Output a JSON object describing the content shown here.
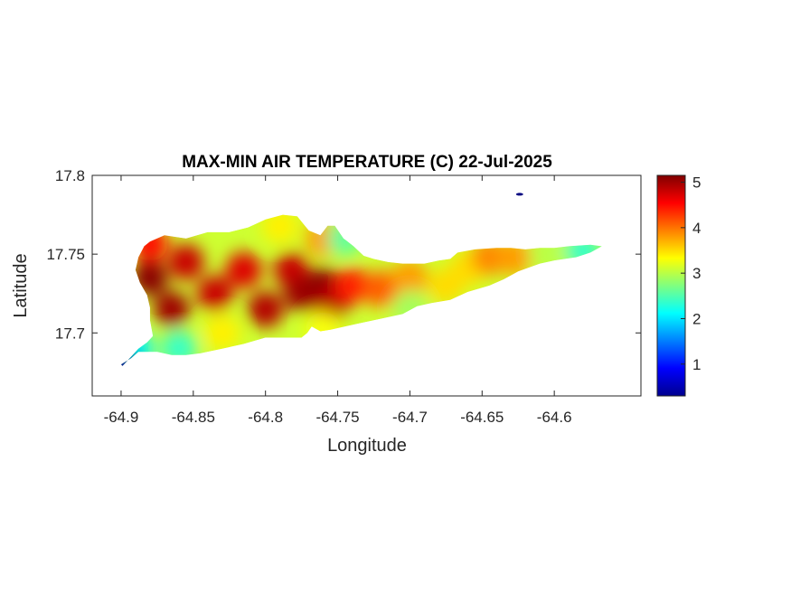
{
  "chart_data": {
    "type": "heatmap",
    "title": "MAX-MIN AIR TEMPERATURE (C) 22-Jul-2025",
    "xlabel": "Longitude",
    "ylabel": "Latitude",
    "xlim": [
      -64.92,
      -64.54
    ],
    "ylim": [
      17.66,
      17.8
    ],
    "x_ticks": [
      -64.9,
      -64.85,
      -64.8,
      -64.75,
      -64.7,
      -64.65,
      -64.6
    ],
    "x_tick_labels": [
      "-64.9",
      "-64.85",
      "-64.8",
      "-64.75",
      "-64.7",
      "-64.65",
      "-64.6"
    ],
    "y_ticks": [
      17.7,
      17.75,
      17.8
    ],
    "y_tick_labels": [
      "17.7",
      "17.75",
      "17.8"
    ],
    "colorbar": {
      "colormap": "jet",
      "range": [
        0.3,
        5.15
      ],
      "ticks": [
        1,
        2,
        3,
        4,
        5
      ],
      "tick_labels": [
        "1",
        "2",
        "3",
        "4",
        "5"
      ]
    },
    "island_outline_lonlat": [
      [
        -64.88,
        17.758
      ],
      [
        -64.87,
        17.762
      ],
      [
        -64.855,
        17.76
      ],
      [
        -64.84,
        17.764
      ],
      [
        -64.825,
        17.764
      ],
      [
        -64.812,
        17.767
      ],
      [
        -64.8,
        17.772
      ],
      [
        -64.788,
        17.775
      ],
      [
        -64.778,
        17.774
      ],
      [
        -64.77,
        17.765
      ],
      [
        -64.762,
        17.762
      ],
      [
        -64.757,
        17.768
      ],
      [
        -64.752,
        17.768
      ],
      [
        -64.746,
        17.76
      ],
      [
        -64.739,
        17.755
      ],
      [
        -64.732,
        17.749
      ],
      [
        -64.725,
        17.747
      ],
      [
        -64.715,
        17.745
      ],
      [
        -64.705,
        17.744
      ],
      [
        -64.69,
        17.744
      ],
      [
        -64.68,
        17.746
      ],
      [
        -64.672,
        17.747
      ],
      [
        -64.667,
        17.751
      ],
      [
        -64.655,
        17.753
      ],
      [
        -64.64,
        17.754
      ],
      [
        -64.63,
        17.754
      ],
      [
        -64.62,
        17.753
      ],
      [
        -64.61,
        17.754
      ],
      [
        -64.6,
        17.754
      ],
      [
        -64.59,
        17.755
      ],
      [
        -64.575,
        17.756
      ],
      [
        -64.567,
        17.755
      ],
      [
        -64.575,
        17.751
      ],
      [
        -64.585,
        17.748
      ],
      [
        -64.6,
        17.746
      ],
      [
        -64.61,
        17.744
      ],
      [
        -64.625,
        17.739
      ],
      [
        -64.635,
        17.734
      ],
      [
        -64.645,
        17.73
      ],
      [
        -64.66,
        17.726
      ],
      [
        -64.672,
        17.721
      ],
      [
        -64.685,
        17.719
      ],
      [
        -64.695,
        17.717
      ],
      [
        -64.705,
        17.712
      ],
      [
        -64.72,
        17.709
      ],
      [
        -64.735,
        17.706
      ],
      [
        -64.745,
        17.704
      ],
      [
        -64.755,
        17.702
      ],
      [
        -64.762,
        17.701
      ],
      [
        -64.768,
        17.704
      ],
      [
        -64.771,
        17.7
      ],
      [
        -64.775,
        17.697
      ],
      [
        -64.785,
        17.697
      ],
      [
        -64.8,
        17.697
      ],
      [
        -64.815,
        17.693
      ],
      [
        -64.83,
        17.69
      ],
      [
        -64.845,
        17.687
      ],
      [
        -64.855,
        17.686
      ],
      [
        -64.865,
        17.686
      ],
      [
        -64.875,
        17.688
      ],
      [
        -64.888,
        17.688
      ],
      [
        -64.893,
        17.684
      ],
      [
        -64.9,
        17.68
      ],
      [
        -64.899,
        17.679
      ],
      [
        -64.892,
        17.686
      ],
      [
        -64.888,
        17.69
      ],
      [
        -64.882,
        17.694
      ],
      [
        -64.878,
        17.698
      ],
      [
        -64.88,
        17.708
      ],
      [
        -64.88,
        17.716
      ],
      [
        -64.882,
        17.724
      ],
      [
        -64.887,
        17.732
      ],
      [
        -64.89,
        17.74
      ],
      [
        -64.888,
        17.748
      ],
      [
        -64.884,
        17.755
      ]
    ],
    "islet_lonlat": [
      -64.624,
      17.788
    ],
    "hotspots": [
      {
        "lon": -64.88,
        "lat": 17.735,
        "value": 5.1
      },
      {
        "lon": -64.865,
        "lat": 17.715,
        "value": 5.0
      },
      {
        "lon": -64.855,
        "lat": 17.745,
        "value": 4.8
      },
      {
        "lon": -64.835,
        "lat": 17.725,
        "value": 4.8
      },
      {
        "lon": -64.815,
        "lat": 17.74,
        "value": 4.7
      },
      {
        "lon": -64.8,
        "lat": 17.715,
        "value": 4.9
      },
      {
        "lon": -64.782,
        "lat": 17.74,
        "value": 4.8
      },
      {
        "lon": -64.775,
        "lat": 17.725,
        "value": 5.0
      },
      {
        "lon": -64.76,
        "lat": 17.73,
        "value": 5.1
      },
      {
        "lon": -64.755,
        "lat": 17.718,
        "value": 4.9
      },
      {
        "lon": -64.74,
        "lat": 17.73,
        "value": 4.4
      },
      {
        "lon": -64.72,
        "lat": 17.728,
        "value": 4.1
      },
      {
        "lon": -64.7,
        "lat": 17.735,
        "value": 3.8
      },
      {
        "lon": -64.675,
        "lat": 17.73,
        "value": 3.5
      },
      {
        "lon": -64.66,
        "lat": 17.741,
        "value": 3.5
      },
      {
        "lon": -64.645,
        "lat": 17.748,
        "value": 3.9
      },
      {
        "lon": -64.628,
        "lat": 17.748,
        "value": 3.8
      },
      {
        "lon": -64.605,
        "lat": 17.75,
        "value": 3.0
      },
      {
        "lon": -64.58,
        "lat": 17.752,
        "value": 2.4
      },
      {
        "lon": -64.76,
        "lat": 17.76,
        "value": 3.8
      },
      {
        "lon": -64.79,
        "lat": 17.768,
        "value": 3.4
      },
      {
        "lon": -64.745,
        "lat": 17.76,
        "value": 2.6
      },
      {
        "lon": -64.83,
        "lat": 17.7,
        "value": 3.4
      },
      {
        "lon": -64.86,
        "lat": 17.69,
        "value": 2.4
      },
      {
        "lon": -64.89,
        "lat": 17.69,
        "value": 2.1
      },
      {
        "lon": -64.899,
        "lat": 17.68,
        "value": 0.4
      },
      {
        "lon": -64.7,
        "lat": 17.716,
        "value": 2.9
      },
      {
        "lon": -64.76,
        "lat": 17.702,
        "value": 3.3
      },
      {
        "lon": -64.88,
        "lat": 17.757,
        "value": 4.5
      },
      {
        "lon": -64.624,
        "lat": 17.788,
        "value": 0.3
      }
    ]
  }
}
